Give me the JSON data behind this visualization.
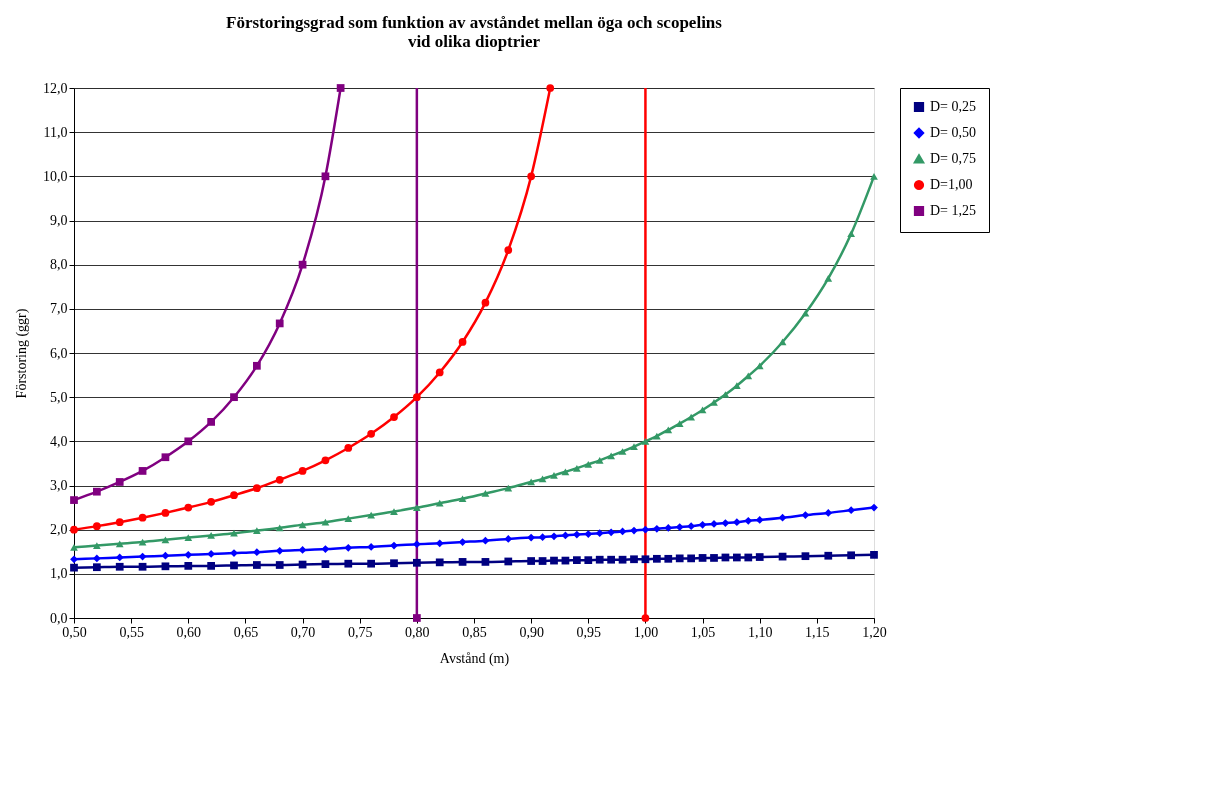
{
  "chart_data": {
    "type": "line",
    "title": "Förstoringsgrad som funktion av avståndet mellan öga och scopelins\nvid olika dioptrier",
    "xlabel": "Avstånd (m)",
    "ylabel": "Förstoring (ggr)",
    "x": [
      0.5,
      0.52,
      0.54,
      0.56,
      0.58,
      0.6,
      0.62,
      0.64,
      0.66,
      0.68,
      0.7,
      0.72,
      0.74,
      0.76,
      0.78,
      0.8,
      0.82,
      0.84,
      0.86,
      0.88,
      0.9,
      0.91,
      0.92,
      0.93,
      0.94,
      0.95,
      0.96,
      0.97,
      0.98,
      0.99,
      1.0,
      1.01,
      1.02,
      1.03,
      1.04,
      1.05,
      1.06,
      1.07,
      1.08,
      1.09,
      1.1,
      1.12,
      1.14,
      1.16,
      1.18,
      1.2
    ],
    "series": [
      {
        "name": "D= 0,25",
        "color": "#000080",
        "marker": "square",
        "values": [
          1.14,
          1.15,
          1.16,
          1.16,
          1.17,
          1.18,
          1.18,
          1.19,
          1.2,
          1.2,
          1.21,
          1.22,
          1.23,
          1.23,
          1.24,
          1.25,
          1.26,
          1.27,
          1.27,
          1.28,
          1.29,
          1.29,
          1.3,
          1.3,
          1.31,
          1.31,
          1.32,
          1.32,
          1.32,
          1.33,
          1.33,
          1.34,
          1.34,
          1.35,
          1.35,
          1.36,
          1.36,
          1.37,
          1.37,
          1.37,
          1.38,
          1.39,
          1.4,
          1.41,
          1.42,
          1.43
        ]
      },
      {
        "name": "D= 0,50",
        "color": "#0000ff",
        "marker": "diamond",
        "values": [
          1.33,
          1.35,
          1.37,
          1.39,
          1.41,
          1.43,
          1.45,
          1.47,
          1.49,
          1.52,
          1.54,
          1.56,
          1.59,
          1.61,
          1.64,
          1.67,
          1.69,
          1.72,
          1.75,
          1.79,
          1.82,
          1.83,
          1.85,
          1.87,
          1.89,
          1.9,
          1.92,
          1.94,
          1.96,
          1.98,
          2.0,
          2.02,
          2.04,
          2.06,
          2.08,
          2.11,
          2.13,
          2.15,
          2.17,
          2.2,
          2.22,
          2.27,
          2.33,
          2.38,
          2.44,
          2.5
        ]
      },
      {
        "name": "D= 0,75",
        "color": "#339966",
        "marker": "triangle",
        "values": [
          1.6,
          1.64,
          1.68,
          1.72,
          1.77,
          1.82,
          1.87,
          1.92,
          1.98,
          2.04,
          2.11,
          2.17,
          2.25,
          2.33,
          2.41,
          2.5,
          2.6,
          2.7,
          2.82,
          2.94,
          3.08,
          3.15,
          3.23,
          3.31,
          3.39,
          3.48,
          3.57,
          3.67,
          3.77,
          3.88,
          4.0,
          4.12,
          4.26,
          4.4,
          4.55,
          4.71,
          4.88,
          5.06,
          5.26,
          5.48,
          5.71,
          6.25,
          6.9,
          7.69,
          8.7,
          10.0
        ]
      },
      {
        "name": "D=1,00",
        "color": "#ff0000",
        "marker": "circle",
        "x": [
          0.5,
          0.52,
          0.54,
          0.56,
          0.58,
          0.6,
          0.62,
          0.64,
          0.66,
          0.68,
          0.7,
          0.72,
          0.74,
          0.76,
          0.78,
          0.8,
          0.82,
          0.84,
          0.86,
          0.88,
          0.9,
          0.9167,
          0.96,
          1.0
        ],
        "values": [
          2.0,
          2.08,
          2.17,
          2.27,
          2.38,
          2.5,
          2.63,
          2.78,
          2.94,
          3.13,
          3.33,
          3.57,
          3.85,
          4.17,
          4.55,
          5.0,
          5.56,
          6.25,
          7.14,
          8.33,
          10.0,
          12.0,
          null,
          0.0
        ]
      },
      {
        "name": "D= 1,25",
        "color": "#800080",
        "marker": "square",
        "x": [
          0.5,
          0.52,
          0.54,
          0.56,
          0.58,
          0.6,
          0.62,
          0.64,
          0.66,
          0.68,
          0.7,
          0.72,
          0.7333,
          0.77,
          0.8
        ],
        "values": [
          2.67,
          2.86,
          3.08,
          3.33,
          3.64,
          4.0,
          4.44,
          5.0,
          5.71,
          6.67,
          8.0,
          10.0,
          12.0,
          null,
          0.0
        ]
      }
    ],
    "ref_lines": [
      {
        "axis": "x",
        "value": 0.8,
        "color": "#800080"
      },
      {
        "axis": "x",
        "value": 1.0,
        "color": "#ff0000"
      }
    ],
    "xlim": [
      0.5,
      1.2
    ],
    "xticks": [
      {
        "value": 0.5,
        "label": "0,50"
      },
      {
        "value": 0.55,
        "label": "0,55"
      },
      {
        "value": 0.6,
        "label": "0,60"
      },
      {
        "value": 0.65,
        "label": "0,65"
      },
      {
        "value": 0.7,
        "label": "0,70"
      },
      {
        "value": 0.75,
        "label": "0,75"
      },
      {
        "value": 0.8,
        "label": "0,80"
      },
      {
        "value": 0.85,
        "label": "0,85"
      },
      {
        "value": 0.9,
        "label": "0,90"
      },
      {
        "value": 0.95,
        "label": "0,95"
      },
      {
        "value": 1.0,
        "label": "1,00"
      },
      {
        "value": 1.05,
        "label": "1,05"
      },
      {
        "value": 1.1,
        "label": "1,10"
      },
      {
        "value": 1.15,
        "label": "1,15"
      },
      {
        "value": 1.2,
        "label": "1,20"
      }
    ],
    "ylim": [
      0,
      12
    ],
    "yticks": [
      {
        "value": 0,
        "label": "0,0"
      },
      {
        "value": 1,
        "label": "1,0"
      },
      {
        "value": 2,
        "label": "2,0"
      },
      {
        "value": 3,
        "label": "3,0"
      },
      {
        "value": 4,
        "label": "4,0"
      },
      {
        "value": 5,
        "label": "5,0"
      },
      {
        "value": 6,
        "label": "6,0"
      },
      {
        "value": 7,
        "label": "7,0"
      },
      {
        "value": 8,
        "label": "8,0"
      },
      {
        "value": 9,
        "label": "9,0"
      },
      {
        "value": 10,
        "label": "10,0"
      },
      {
        "value": 11,
        "label": "11,0"
      },
      {
        "value": 12,
        "label": "12,0"
      }
    ],
    "grid": "y",
    "legend": "right",
    "line_style": "solid"
  }
}
